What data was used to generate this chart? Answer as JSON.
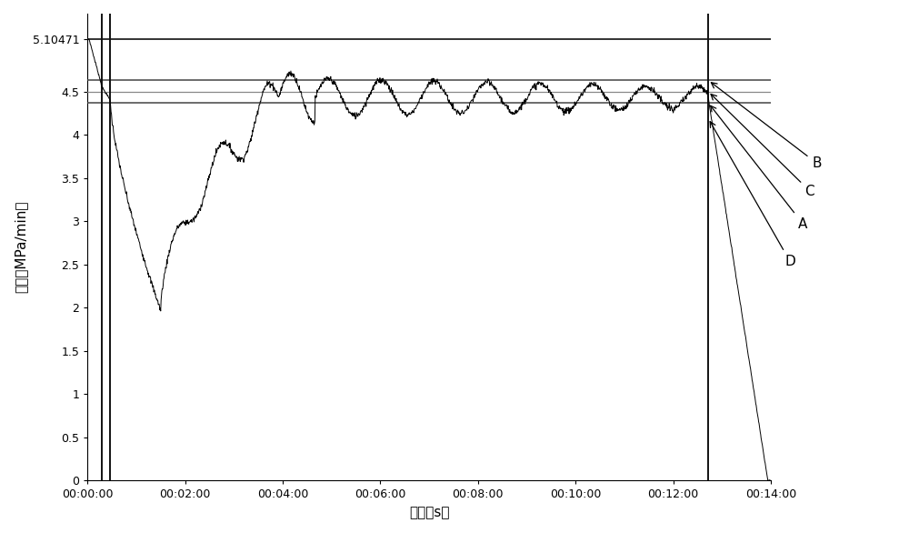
{
  "xlabel": "时间（s）",
  "ylabel": "速度（MPa/min）",
  "ylim": [
    0,
    5.4
  ],
  "yticks": [
    0,
    0.5,
    1.0,
    1.5,
    2.0,
    2.5,
    3.0,
    3.5,
    4.0,
    4.5
  ],
  "ytick_top_label": "5.10471",
  "ytick_top_val": 5.10471,
  "hline_top": 5.10471,
  "hline_b": 4.63,
  "hline_c": 4.5,
  "hline_a": 4.37,
  "vline1": 18,
  "vline2": 28,
  "vline3": 763,
  "xmin": 0,
  "xmax": 840,
  "xtick_interval": 120,
  "background_color": "#ffffff",
  "line_color": "#000000"
}
